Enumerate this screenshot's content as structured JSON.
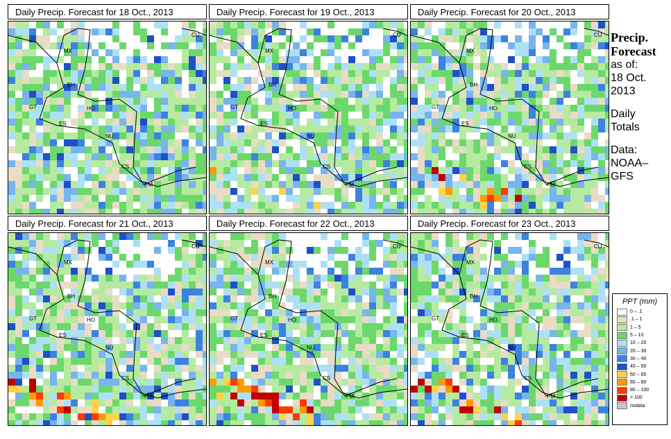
{
  "panels": [
    {
      "title": "Daily Precip. Forecast for  18 Oct., 2013",
      "seed": 11,
      "boost": 0.0
    },
    {
      "title": "Daily Precip. Forecast for  19 Oct., 2013",
      "seed": 23,
      "boost": 0.15
    },
    {
      "title": "Daily Precip. Forecast for  20 Oct., 2013",
      "seed": 37,
      "boost": 0.3
    },
    {
      "title": "Daily Precip. Forecast for  21 Oct., 2013",
      "seed": 41,
      "boost": 0.35
    },
    {
      "title": "Daily Precip. Forecast for  22 Oct., 2013",
      "seed": 53,
      "boost": 0.45
    },
    {
      "title": "Daily Precip. Forecast for  23 Oct., 2013",
      "seed": 67,
      "boost": 0.5
    }
  ],
  "countries": [
    "MX",
    "BH",
    "GT",
    "HO",
    "ES",
    "NU",
    "CS",
    "PM",
    "CU"
  ],
  "side": {
    "title_line1": "Precip.",
    "title_line2": "Forecast",
    "asof": "as of:",
    "date_line1": "18 Oct.",
    "date_line2": "2013",
    "daily1": "Daily",
    "daily2": "Totals",
    "data1": "Data:",
    "data2": "NOAA–",
    "data3": "GFS"
  },
  "legend": {
    "title": "PPT (mm)",
    "items": [
      {
        "label": "0 – .1",
        "color": "#ffffff"
      },
      {
        "label": ".1 – 1",
        "color": "#e8dcc4"
      },
      {
        "label": "1 – 5",
        "color": "#b6eaa0"
      },
      {
        "label": "5 – 10",
        "color": "#6cd86c"
      },
      {
        "label": "10 – 20",
        "color": "#aee0f5"
      },
      {
        "label": "20 – 30",
        "color": "#78b4ee"
      },
      {
        "label": "30 – 40",
        "color": "#3c82e0"
      },
      {
        "label": "40 – 50",
        "color": "#1e50c8"
      },
      {
        "label": "50 – 65",
        "color": "#ffd24a"
      },
      {
        "label": "65 – 80",
        "color": "#ff9a00"
      },
      {
        "label": "80 – 100",
        "color": "#ff3a00"
      },
      {
        "label": "> 100",
        "color": "#c00000"
      },
      {
        "label": "nodata",
        "color": "#c8c8c8"
      }
    ]
  }
}
